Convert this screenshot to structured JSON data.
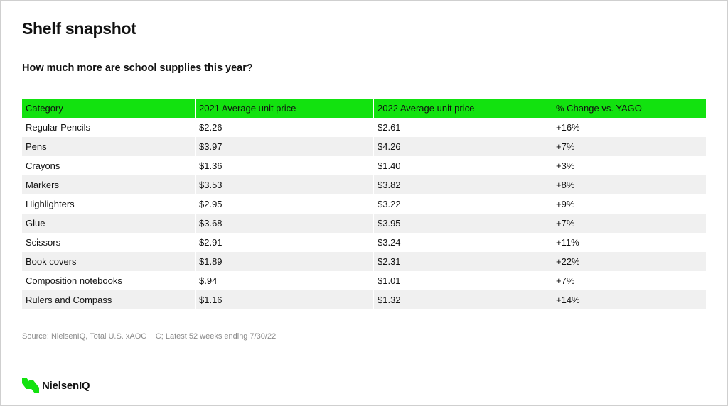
{
  "page": {
    "title": "Shelf snapshot",
    "subtitle": "How much more are school supplies this year?"
  },
  "table": {
    "headers": [
      "Category",
      "2021 Average unit price",
      "2022 Average unit price",
      "% Change vs. YAGO"
    ],
    "rows": [
      [
        "Regular Pencils",
        "$2.26",
        "$2.61",
        "+16%"
      ],
      [
        "Pens",
        "$3.97",
        "$4.26",
        "+7%"
      ],
      [
        "Crayons",
        "$1.36",
        "$1.40",
        "+3%"
      ],
      [
        "Markers",
        "$3.53",
        "$3.82",
        "+8%"
      ],
      [
        "Highlighters",
        "$2.95",
        "$3.22",
        "+9%"
      ],
      [
        "Glue",
        "$3.68",
        "$3.95",
        "+7%"
      ],
      [
        "Scissors",
        "$2.91",
        "$3.24",
        "+11%"
      ],
      [
        "Book covers",
        "$1.89",
        "$2.31",
        "+22%"
      ],
      [
        "Composition notebooks",
        "$.94",
        "$1.01",
        "+7%"
      ],
      [
        "Rulers and Compass",
        "$1.16",
        "$1.32",
        "+14%"
      ]
    ]
  },
  "source": "Source: NielsenIQ, Total U.S. xAOC + C; Latest 52 weeks ending 7/30/22",
  "footer": {
    "logo_text": "NielsenIQ",
    "logo_icon": "nielseniq-logo-icon"
  },
  "colors": {
    "header_green": "#12e20f",
    "stripe": "#f0f0f0",
    "source_gray": "#8a8a8a"
  }
}
